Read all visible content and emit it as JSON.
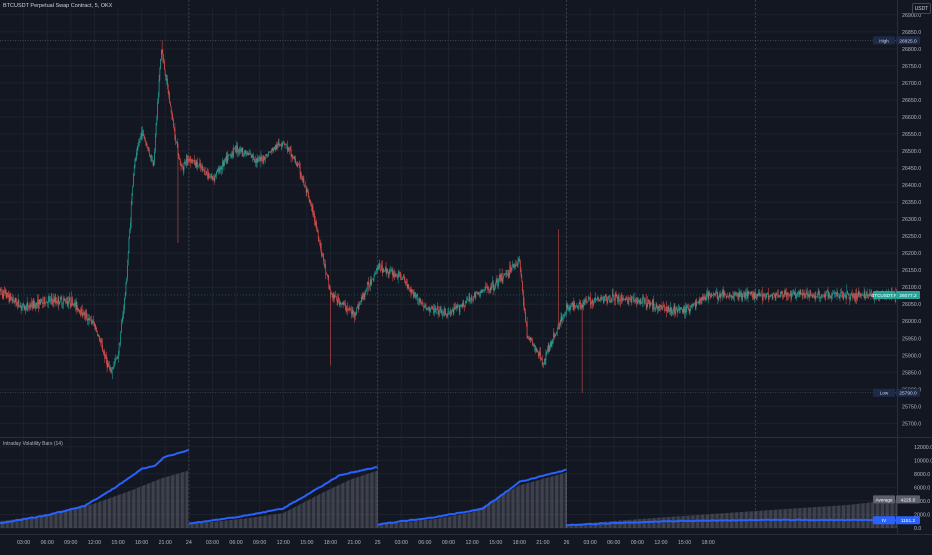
{
  "header": {
    "title": "BTCUSDT Perpetual Swap Contract, 5, OKX",
    "currency": "USDT"
  },
  "indicator": {
    "title": "Intraday Volatility Bars (14)"
  },
  "labels": {
    "high_tag": "High",
    "high_value": "26825.0",
    "low_tag": "Low",
    "low_value": "25790.0",
    "last_tag": "BTCUSDT.P",
    "last_value": "26077.2",
    "avg_tag": "Average",
    "avg_value": "4225.0",
    "iv_tag": "IV",
    "iv_value": "1151.2"
  },
  "colors": {
    "background": "#131722",
    "up": "#26a69a",
    "down": "#ef5350",
    "iv_line": "#2962ff",
    "avg_area": "#787b86",
    "grid": "#1e222d"
  },
  "chart_data": [
    {
      "type": "candlestick",
      "title": "BTCUSDT Perpetual Swap Contract, 5, OKX",
      "ylabel": "USDT",
      "ylim": [
        25660,
        26920
      ],
      "y_ticks": [
        25700.0,
        25750.0,
        25800.0,
        25850.0,
        25900.0,
        25950.0,
        26000.0,
        26050.0,
        26100.0,
        26150.0,
        26200.0,
        26250.0,
        26300.0,
        26350.0,
        26400.0,
        26450.0,
        26500.0,
        26550.0,
        26600.0,
        26650.0,
        26700.0,
        26750.0,
        26800.0,
        26850.0,
        26900.0
      ],
      "x_ticks": [
        "03:00",
        "06:00",
        "09:00",
        "12:00",
        "15:00",
        "18:00",
        "21:00",
        "24",
        "03:00",
        "06:00",
        "09:00",
        "12:00",
        "15:00",
        "18:00",
        "21:00",
        "25",
        "03:00",
        "06:00",
        "09:00",
        "12:00",
        "15:00",
        "18:00",
        "21:00",
        "26",
        "03:00",
        "06:00",
        "09:00",
        "12:00",
        "15:00",
        "18:00"
      ],
      "high": 26825.0,
      "low": 25790.0,
      "last": 26077.2,
      "approx_close_path": [
        {
          "t": "23 00:00",
          "price": 26090
        },
        {
          "t": "23 03:00",
          "price": 26040
        },
        {
          "t": "23 06:00",
          "price": 26060
        },
        {
          "t": "23 09:00",
          "price": 26060
        },
        {
          "t": "23 12:00",
          "price": 25990
        },
        {
          "t": "23 14:00",
          "price": 25850
        },
        {
          "t": "23 15:00",
          "price": 25900
        },
        {
          "t": "23 16:00",
          "price": 26100
        },
        {
          "t": "23 17:00",
          "price": 26450
        },
        {
          "t": "23 18:00",
          "price": 26560
        },
        {
          "t": "23 19:30",
          "price": 26460
        },
        {
          "t": "23 20:30",
          "price": 26800
        },
        {
          "t": "23 22:00",
          "price": 26580
        },
        {
          "t": "23 23:00",
          "price": 26450
        },
        {
          "t": "24 00:00",
          "price": 26480
        },
        {
          "t": "24 03:00",
          "price": 26420
        },
        {
          "t": "24 06:00",
          "price": 26510
        },
        {
          "t": "24 09:00",
          "price": 26470
        },
        {
          "t": "24 12:00",
          "price": 26530
        },
        {
          "t": "24 14:00",
          "price": 26450
        },
        {
          "t": "24 16:00",
          "price": 26300
        },
        {
          "t": "24 18:00",
          "price": 26080
        },
        {
          "t": "24 21:00",
          "price": 26020
        },
        {
          "t": "25 00:00",
          "price": 26160
        },
        {
          "t": "25 03:00",
          "price": 26130
        },
        {
          "t": "25 06:00",
          "price": 26040
        },
        {
          "t": "25 09:00",
          "price": 26020
        },
        {
          "t": "25 12:00",
          "price": 26070
        },
        {
          "t": "25 15:00",
          "price": 26110
        },
        {
          "t": "25 18:00",
          "price": 26180
        },
        {
          "t": "25 19:00",
          "price": 25960
        },
        {
          "t": "25 21:00",
          "price": 25880
        },
        {
          "t": "26 00:00",
          "price": 26040
        },
        {
          "t": "26 03:00",
          "price": 26060
        },
        {
          "t": "26 06:00",
          "price": 26070
        },
        {
          "t": "26 09:00",
          "price": 26060
        },
        {
          "t": "26 12:00",
          "price": 26040
        },
        {
          "t": "26 15:00",
          "price": 26030
        },
        {
          "t": "26 18:00",
          "price": 26077
        }
      ]
    },
    {
      "type": "bar+line",
      "title": "Intraday Volatility Bars (14)",
      "ylim": [
        0,
        13000
      ],
      "y_ticks": [
        0,
        2000.0,
        4000.0,
        6000.0,
        8000.0,
        10000.0,
        12000.0
      ],
      "series": [
        {
          "name": "Average",
          "kind": "bar",
          "sessions": [
            [
              {
                "f": 0,
                "v": 1000
              },
              {
                "f": 0.3,
                "v": 2100
              },
              {
                "f": 0.5,
                "v": 3600
              },
              {
                "f": 0.7,
                "v": 5600
              },
              {
                "f": 0.85,
                "v": 7300
              },
              {
                "f": 1,
                "v": 8500
              }
            ],
            [
              {
                "f": 0,
                "v": 550
              },
              {
                "f": 0.3,
                "v": 1400
              },
              {
                "f": 0.5,
                "v": 2200
              },
              {
                "f": 0.7,
                "v": 5100
              },
              {
                "f": 0.85,
                "v": 7100
              },
              {
                "f": 1,
                "v": 8500
              }
            ],
            [
              {
                "f": 0,
                "v": 500
              },
              {
                "f": 0.3,
                "v": 1300
              },
              {
                "f": 0.5,
                "v": 2300
              },
              {
                "f": 0.6,
                "v": 3800
              },
              {
                "f": 0.75,
                "v": 6300
              },
              {
                "f": 1,
                "v": 8200
              }
            ],
            [
              {
                "f": 0,
                "v": 500
              },
              {
                "f": 0.3,
                "v": 1600
              },
              {
                "f": 0.6,
                "v": 2600
              },
              {
                "f": 0.85,
                "v": 3400
              },
              {
                "f": 1,
                "v": 4225
              }
            ]
          ]
        },
        {
          "name": "IV",
          "kind": "line",
          "sessions": [
            [
              {
                "f": 0,
                "v": 700
              },
              {
                "f": 0.25,
                "v": 1900
              },
              {
                "f": 0.45,
                "v": 3300
              },
              {
                "f": 0.6,
                "v": 5800
              },
              {
                "f": 0.75,
                "v": 8700
              },
              {
                "f": 0.82,
                "v": 9200
              },
              {
                "f": 0.87,
                "v": 10500
              },
              {
                "f": 1,
                "v": 11500
              }
            ],
            [
              {
                "f": 0,
                "v": 650
              },
              {
                "f": 0.3,
                "v": 1800
              },
              {
                "f": 0.5,
                "v": 2900
              },
              {
                "f": 0.65,
                "v": 5300
              },
              {
                "f": 0.8,
                "v": 7800
              },
              {
                "f": 1,
                "v": 9000
              }
            ],
            [
              {
                "f": 0,
                "v": 550
              },
              {
                "f": 0.3,
                "v": 1600
              },
              {
                "f": 0.55,
                "v": 2800
              },
              {
                "f": 0.65,
                "v": 4700
              },
              {
                "f": 0.75,
                "v": 6800
              },
              {
                "f": 1,
                "v": 8600
              }
            ],
            [
              {
                "f": 0,
                "v": 450
              },
              {
                "f": 0.3,
                "v": 1000
              },
              {
                "f": 0.6,
                "v": 1200
              },
              {
                "f": 1,
                "v": 1151.2
              }
            ]
          ]
        }
      ]
    }
  ]
}
